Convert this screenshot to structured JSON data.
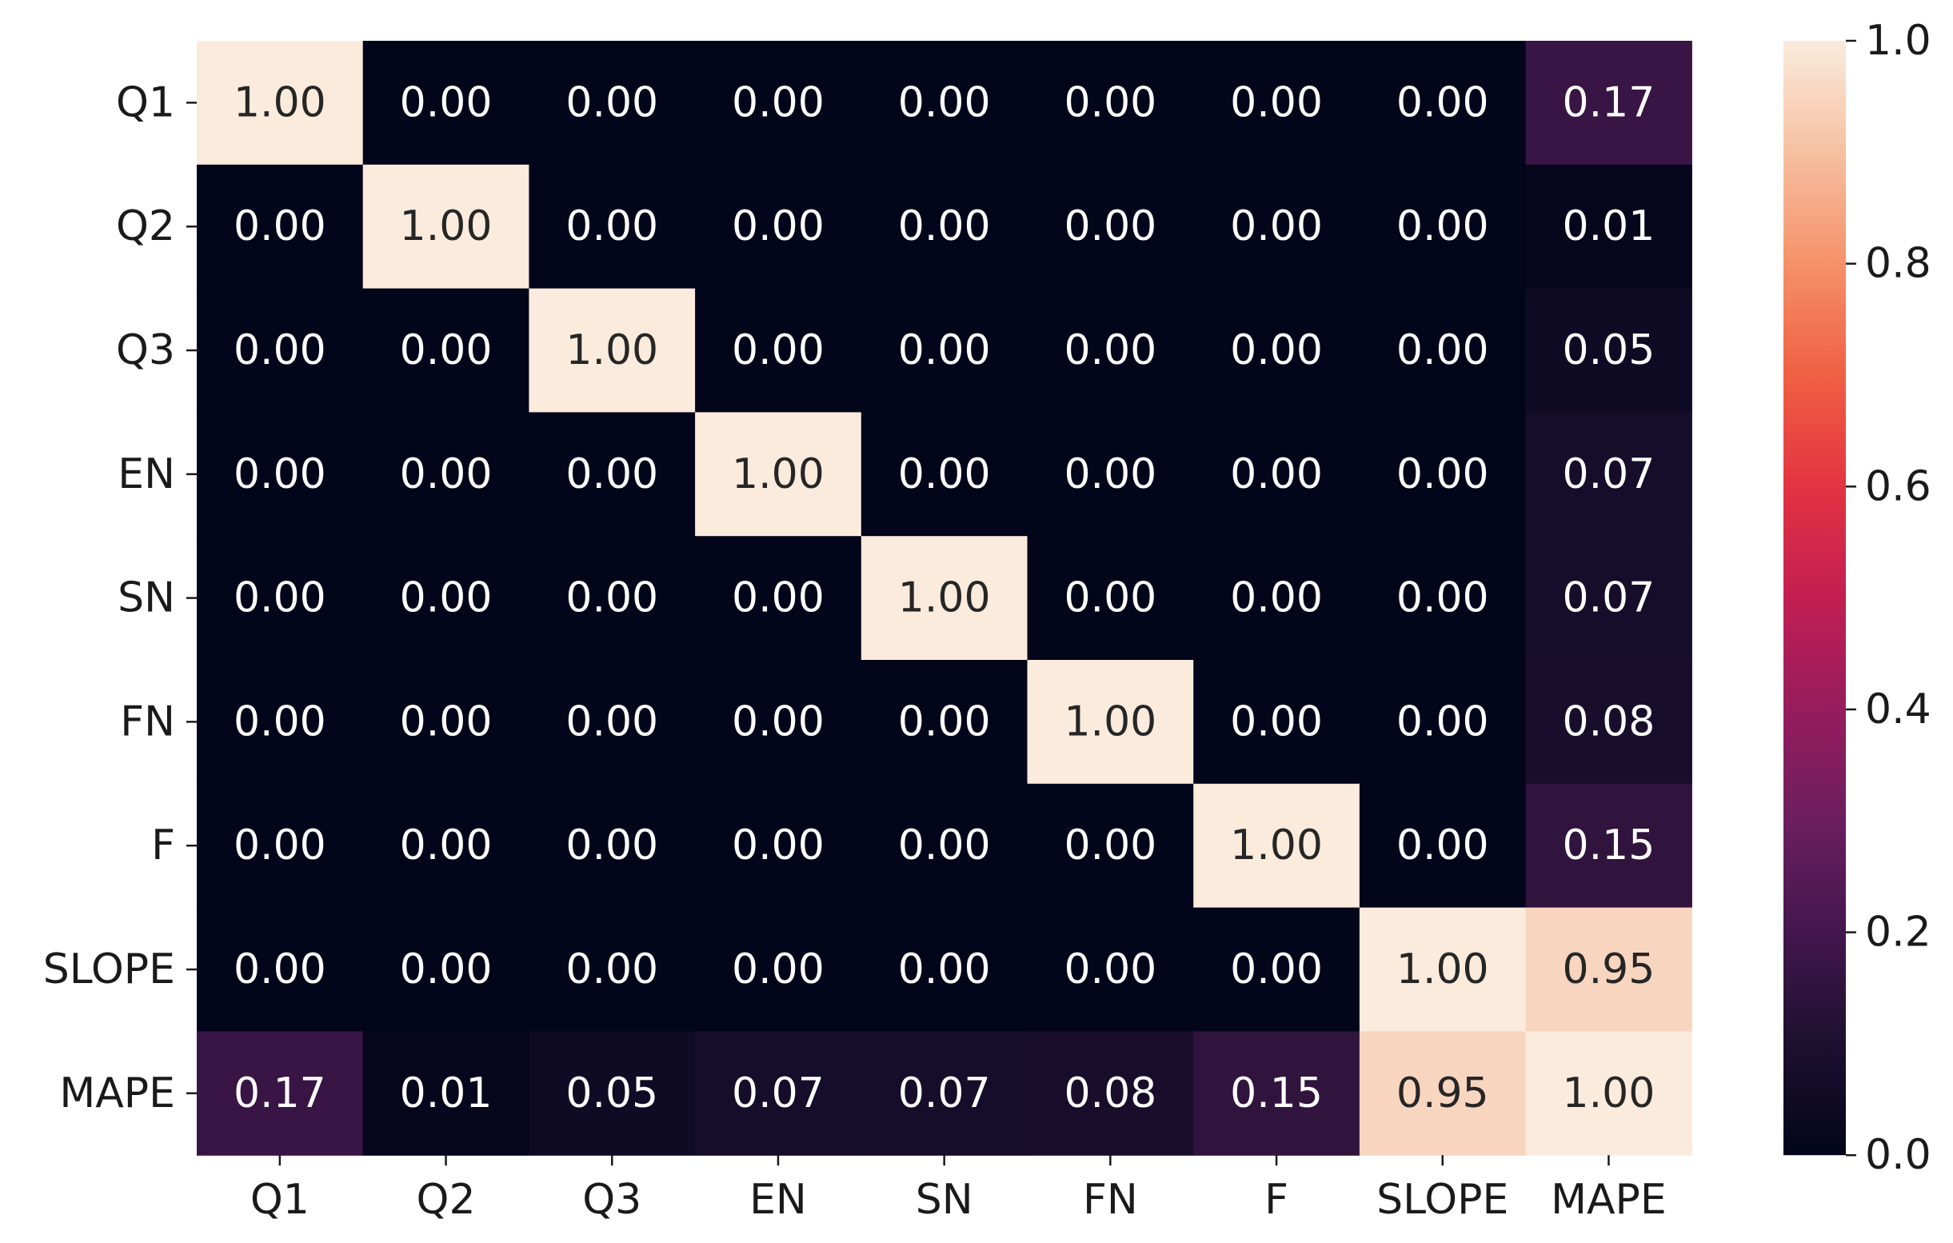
{
  "chart_data": {
    "type": "heatmap",
    "rows": [
      "Q1",
      "Q2",
      "Q3",
      "EN",
      "SN",
      "FN",
      "F",
      "SLOPE",
      "MAPE"
    ],
    "cols": [
      "Q1",
      "Q2",
      "Q3",
      "EN",
      "SN",
      "FN",
      "F",
      "SLOPE",
      "MAPE"
    ],
    "values": [
      [
        1.0,
        0.0,
        0.0,
        0.0,
        0.0,
        0.0,
        0.0,
        0.0,
        0.17
      ],
      [
        0.0,
        1.0,
        0.0,
        0.0,
        0.0,
        0.0,
        0.0,
        0.0,
        0.01
      ],
      [
        0.0,
        0.0,
        1.0,
        0.0,
        0.0,
        0.0,
        0.0,
        0.0,
        0.05
      ],
      [
        0.0,
        0.0,
        0.0,
        1.0,
        0.0,
        0.0,
        0.0,
        0.0,
        0.07
      ],
      [
        0.0,
        0.0,
        0.0,
        0.0,
        1.0,
        0.0,
        0.0,
        0.0,
        0.07
      ],
      [
        0.0,
        0.0,
        0.0,
        0.0,
        0.0,
        1.0,
        0.0,
        0.0,
        0.08
      ],
      [
        0.0,
        0.0,
        0.0,
        0.0,
        0.0,
        0.0,
        1.0,
        0.0,
        0.15
      ],
      [
        0.0,
        0.0,
        0.0,
        0.0,
        0.0,
        0.0,
        0.0,
        1.0,
        0.95
      ],
      [
        0.17,
        0.01,
        0.05,
        0.07,
        0.07,
        0.08,
        0.15,
        0.95,
        1.0
      ]
    ],
    "value_format": "0.00",
    "colormap": "rocket",
    "vmin": 0.0,
    "vmax": 1.0,
    "colorbar_ticks": [
      "0.0",
      "0.2",
      "0.4",
      "0.6",
      "0.8",
      "1.0"
    ],
    "title": "",
    "xlabel": "",
    "ylabel": ""
  }
}
